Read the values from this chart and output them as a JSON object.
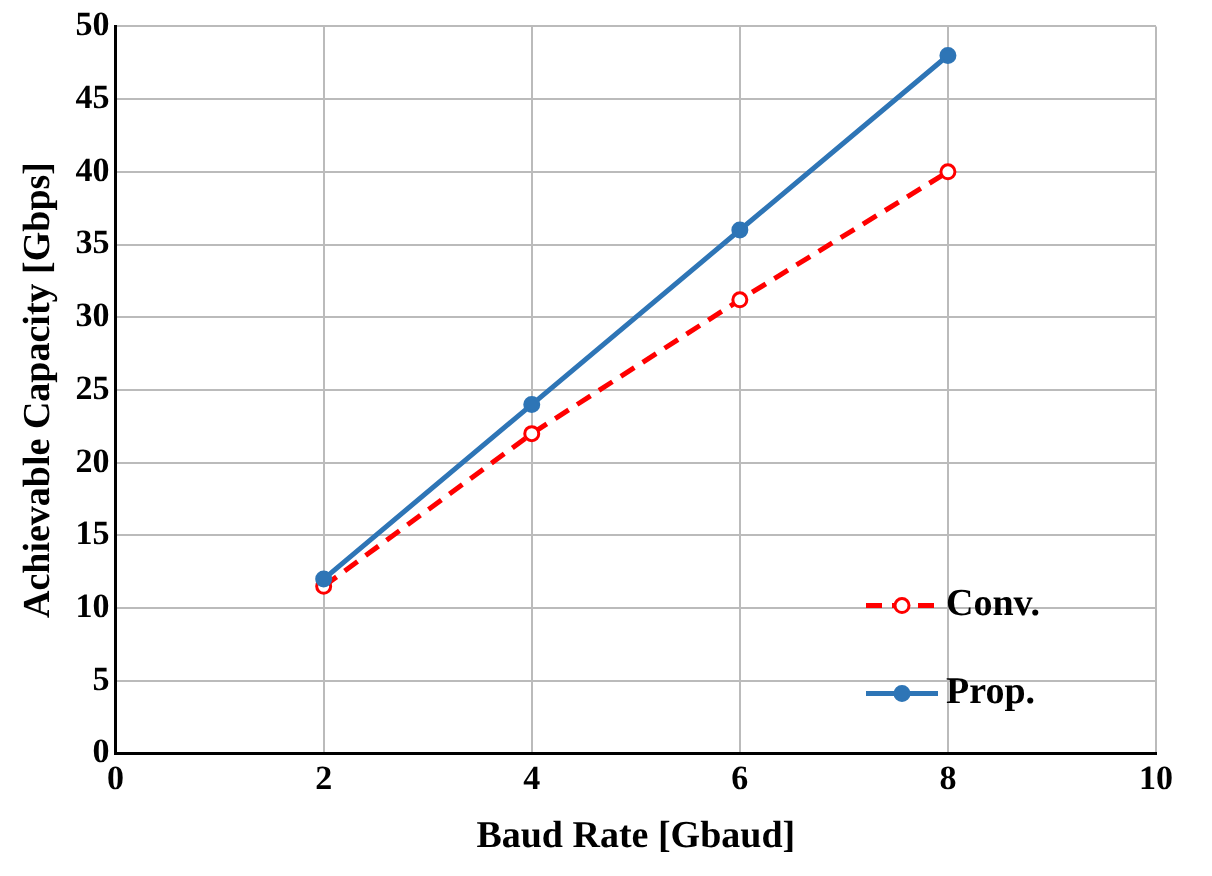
{
  "chart_data": {
    "type": "line",
    "xlabel": "Baud Rate [Gbaud]",
    "ylabel": "Achievable Capacity [Gbps]",
    "x": [
      2,
      4,
      6,
      8
    ],
    "series": [
      {
        "name": "Conv.",
        "color": "#ff0000",
        "values": [
          11.5,
          22,
          31.2,
          40
        ],
        "line_style": "dashed",
        "marker": "circle"
      },
      {
        "name": "Prop.",
        "color": "#2e75b6",
        "values": [
          12,
          24,
          36,
          48
        ],
        "line_style": "solid",
        "marker": "circle"
      }
    ],
    "xlim": [
      0,
      10
    ],
    "xticks": [
      0,
      2,
      4,
      6,
      8,
      10
    ],
    "ylim": [
      0,
      50
    ],
    "yticks": [
      0,
      5,
      10,
      15,
      20,
      25,
      30,
      35,
      40,
      45,
      50
    ],
    "grid": true,
    "legend": "bottom right"
  }
}
